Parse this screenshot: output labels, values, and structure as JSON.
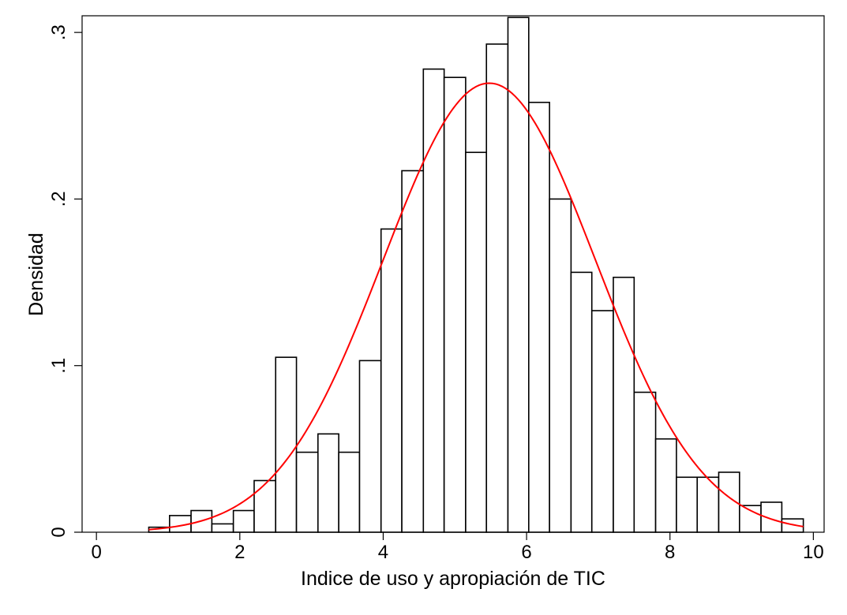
{
  "chart_data": {
    "type": "bar",
    "title": "",
    "xlabel": "Indice de uso y apropiación de TIC",
    "ylabel": "Densidad",
    "xlim": [
      -0.2,
      10.15
    ],
    "ylim": [
      0,
      0.31
    ],
    "xticks": [
      0,
      2,
      4,
      6,
      8,
      10
    ],
    "xtick_labels": [
      "0",
      "2",
      "4",
      "6",
      "8",
      "10"
    ],
    "yticks": [
      0,
      0.1,
      0.2,
      0.3
    ],
    "ytick_labels": [
      "0",
      ".1",
      ".2",
      ".3"
    ],
    "grid": false,
    "legend": "none",
    "bar_fill": "#ffffff",
    "bar_stroke": "#000000",
    "curve_color": "#ff0000",
    "bins": [
      {
        "x0": 0.73,
        "x1": 1.02,
        "density": 0.003
      },
      {
        "x0": 1.02,
        "x1": 1.32,
        "density": 0.01
      },
      {
        "x0": 1.32,
        "x1": 1.61,
        "density": 0.013
      },
      {
        "x0": 1.61,
        "x1": 1.91,
        "density": 0.005
      },
      {
        "x0": 1.91,
        "x1": 2.2,
        "density": 0.013
      },
      {
        "x0": 2.2,
        "x1": 2.5,
        "density": 0.031
      },
      {
        "x0": 2.5,
        "x1": 2.79,
        "density": 0.105
      },
      {
        "x0": 2.79,
        "x1": 3.09,
        "density": 0.048
      },
      {
        "x0": 3.09,
        "x1": 3.38,
        "density": 0.059
      },
      {
        "x0": 3.38,
        "x1": 3.67,
        "density": 0.048
      },
      {
        "x0": 3.67,
        "x1": 3.97,
        "density": 0.103
      },
      {
        "x0": 3.97,
        "x1": 4.26,
        "density": 0.182
      },
      {
        "x0": 4.26,
        "x1": 4.56,
        "density": 0.217
      },
      {
        "x0": 4.56,
        "x1": 4.85,
        "density": 0.278
      },
      {
        "x0": 4.85,
        "x1": 5.15,
        "density": 0.273
      },
      {
        "x0": 5.15,
        "x1": 5.44,
        "density": 0.228
      },
      {
        "x0": 5.44,
        "x1": 5.74,
        "density": 0.293
      },
      {
        "x0": 5.74,
        "x1": 6.03,
        "density": 0.309
      },
      {
        "x0": 6.03,
        "x1": 6.32,
        "density": 0.258
      },
      {
        "x0": 6.32,
        "x1": 6.62,
        "density": 0.2
      },
      {
        "x0": 6.62,
        "x1": 6.91,
        "density": 0.156
      },
      {
        "x0": 6.91,
        "x1": 7.21,
        "density": 0.133
      },
      {
        "x0": 7.21,
        "x1": 7.5,
        "density": 0.153
      },
      {
        "x0": 7.5,
        "x1": 7.8,
        "density": 0.084
      },
      {
        "x0": 7.8,
        "x1": 8.09,
        "density": 0.056
      },
      {
        "x0": 8.09,
        "x1": 8.38,
        "density": 0.033
      },
      {
        "x0": 8.38,
        "x1": 8.68,
        "density": 0.033
      },
      {
        "x0": 8.68,
        "x1": 8.97,
        "density": 0.036
      },
      {
        "x0": 8.97,
        "x1": 9.27,
        "density": 0.016
      },
      {
        "x0": 9.27,
        "x1": 9.56,
        "density": 0.018
      },
      {
        "x0": 9.56,
        "x1": 9.86,
        "density": 0.008
      }
    ],
    "normal_curve": {
      "mean": 5.48,
      "sd": 1.48,
      "x_range": [
        0.73,
        9.86
      ]
    }
  }
}
